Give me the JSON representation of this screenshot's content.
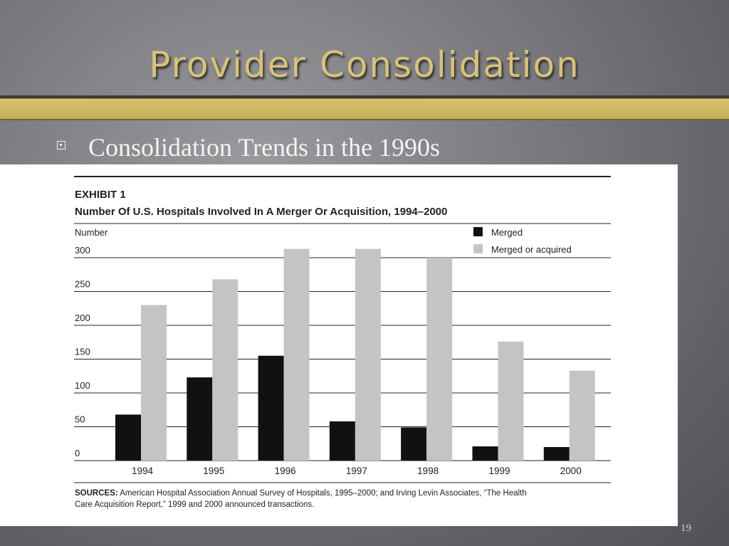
{
  "slide": {
    "title": "Provider Consolidation",
    "bullet": "Consolidation Trends in the 1990s",
    "page_number": "19"
  },
  "colors": {
    "merged": "#111111",
    "merged_or_acquired": "#c4c4c4",
    "accent_gold": "#d8c27a"
  },
  "chart_data": {
    "type": "bar",
    "exhibit_label": "EXHIBIT 1",
    "title": "Number Of U.S. Hospitals Involved In A Merger Or Acquisition, 1994–2000",
    "ylabel": "Number",
    "xlabel": "",
    "ylim": [
      0,
      300
    ],
    "yticks": [
      0,
      50,
      100,
      150,
      200,
      250,
      300
    ],
    "grid": true,
    "legend_position": "top-right",
    "categories": [
      "1994",
      "1995",
      "1996",
      "1997",
      "1998",
      "1999",
      "2000"
    ],
    "series": [
      {
        "name": "Merged",
        "values": [
          68,
          123,
          155,
          58,
          49,
          21,
          20
        ]
      },
      {
        "name": "Merged or acquired",
        "values": [
          230,
          268,
          313,
          313,
          300,
          176,
          133
        ]
      }
    ],
    "sources_label": "SOURCES:",
    "sources_line1": " American Hospital Association Annual Survey of Hospitals, 1995–2000; and Irving Levin Associates, “The Health",
    "sources_line2": "Care Acquisition Report,” 1999 and 2000 announced transactions."
  }
}
